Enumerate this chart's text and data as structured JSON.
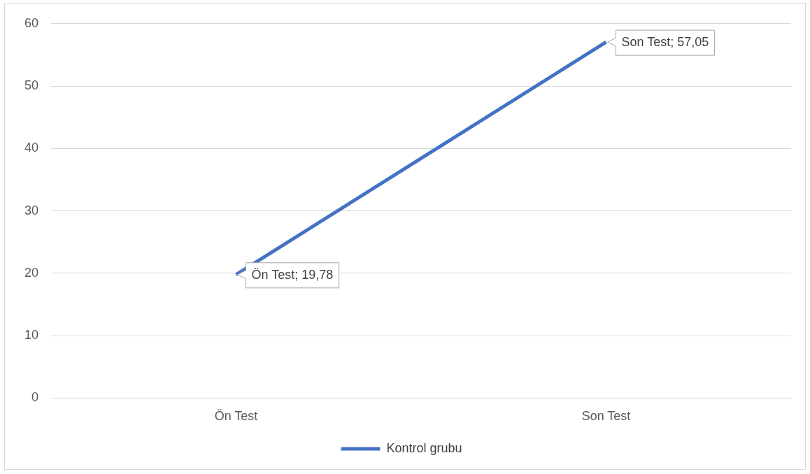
{
  "chart_data": {
    "type": "line",
    "categories": [
      "Ön Test",
      "Son Test"
    ],
    "series": [
      {
        "name": "Kontrol grubu",
        "color": "#4472c4",
        "values": [
          19.78,
          57.05
        ],
        "value_labels": [
          "Ön Test; 19,78",
          "Son Test; 57,05"
        ]
      }
    ],
    "ylim": [
      0,
      60
    ],
    "yticks": [
      0,
      10,
      20,
      30,
      40,
      50,
      60
    ],
    "grid": "y",
    "legend": "bottom",
    "marker": "none",
    "line_style": "solid"
  }
}
